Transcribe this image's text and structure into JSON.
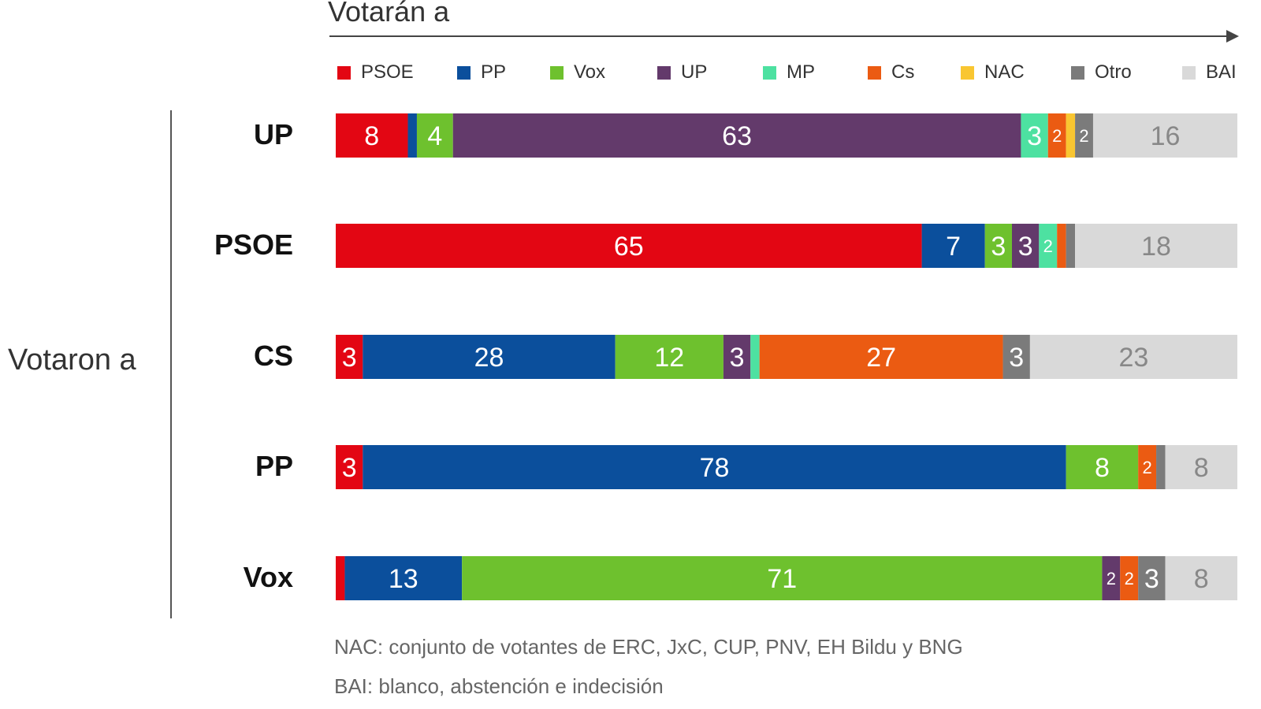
{
  "chart_data": {
    "type": "bar",
    "orientation": "horizontal",
    "stacked": true,
    "x_title": "Votarán a",
    "y_title": "Votaron a",
    "legend_position": "top",
    "categories": [
      "UP",
      "PSOE",
      "CS",
      "PP",
      "Vox"
    ],
    "series": [
      {
        "name": "PSOE",
        "color": "#e30613",
        "values": [
          8,
          65,
          3,
          3,
          1
        ]
      },
      {
        "name": "PP",
        "color": "#0b4f9c",
        "values": [
          1,
          7,
          28,
          78,
          13
        ]
      },
      {
        "name": "Vox",
        "color": "#6ec12e",
        "values": [
          4,
          3,
          12,
          8,
          71
        ]
      },
      {
        "name": "UP",
        "color": "#633a6b",
        "values": [
          63,
          3,
          3,
          0,
          2
        ]
      },
      {
        "name": "MP",
        "color": "#4de1a1",
        "values": [
          3,
          2,
          1,
          0,
          0
        ]
      },
      {
        "name": "Cs",
        "color": "#eb5b12",
        "values": [
          2,
          1,
          27,
          2,
          2
        ]
      },
      {
        "name": "NAC",
        "color": "#f9c631",
        "values": [
          1,
          0,
          0,
          0,
          0
        ]
      },
      {
        "name": "Otro",
        "color": "#7b7b7b",
        "values": [
          2,
          1,
          3,
          1,
          3
        ]
      },
      {
        "name": "BAI",
        "color": "#d9d9d9",
        "values": [
          16,
          18,
          23,
          8,
          8
        ]
      }
    ],
    "data_labels": [
      [
        "8",
        "",
        "4",
        "63",
        "3",
        "2",
        "",
        "2",
        "16"
      ],
      [
        "65",
        "7",
        "3",
        "3",
        "2",
        "",
        "",
        "",
        "18"
      ],
      [
        "3",
        "28",
        "12",
        "3",
        "",
        "27",
        "",
        "3",
        "23"
      ],
      [
        "3",
        "78",
        "8",
        "",
        "",
        "2",
        "",
        "",
        "8"
      ],
      [
        "",
        "13",
        "71",
        "2",
        "",
        "2",
        "",
        "3",
        "8"
      ]
    ],
    "xlim": [
      0,
      100
    ]
  },
  "notes": [
    "NAC: conjunto de votantes de ERC, JxC, CUP, PNV, EH Bildu y BNG",
    "BAI: blanco, abstención e indecisión"
  ]
}
